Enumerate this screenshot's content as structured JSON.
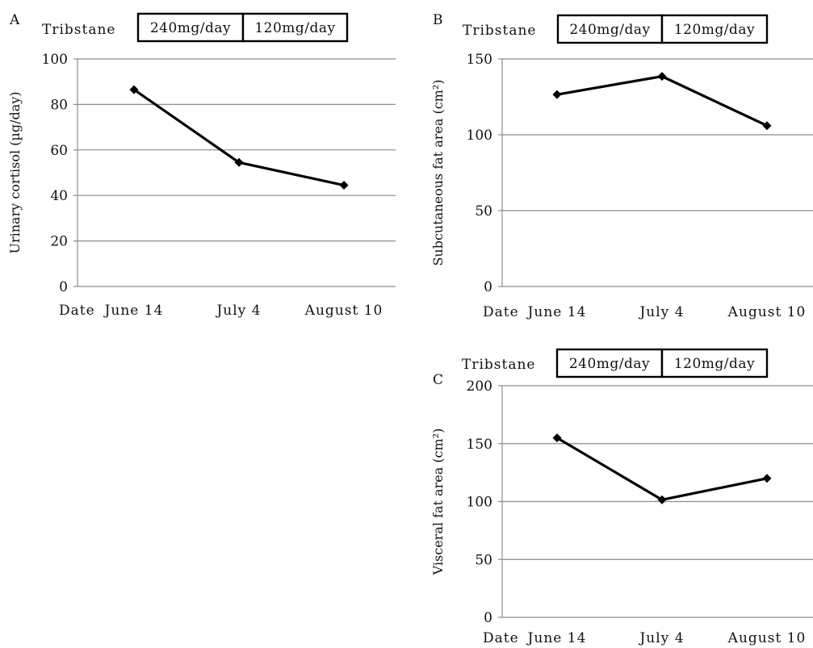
{
  "chart_data": [
    {
      "panel": "A",
      "type": "line",
      "treatment_label": "Tribstane",
      "doses": [
        "240mg/day",
        "120mg/day"
      ],
      "ylabel": "Urinary cortisol (µg/day)",
      "x_axis_prefix": "Date",
      "categories": [
        "June 14",
        "July 4",
        "August 10"
      ],
      "values": [
        86.5,
        54.5,
        44.5
      ],
      "ylim": [
        0,
        100
      ],
      "yticks": [
        "0",
        "20",
        "40",
        "60",
        "80",
        "100"
      ],
      "grid": true,
      "line_color": "#000000"
    },
    {
      "panel": "B",
      "type": "line",
      "treatment_label": "Tribstane",
      "doses": [
        "240mg/day",
        "120mg/day"
      ],
      "ylabel": "Subcutaneous fat area (cm²)",
      "x_axis_prefix": "Date",
      "categories": [
        "June 14",
        "July 4",
        "August 10"
      ],
      "values": [
        126.5,
        138.5,
        106
      ],
      "ylim": [
        0,
        150
      ],
      "yticks": [
        "0",
        "50",
        "100",
        "150"
      ],
      "grid": true,
      "line_color": "#000000"
    },
    {
      "panel": "C",
      "type": "line",
      "treatment_label": "Tribstane",
      "doses": [
        "240mg/day",
        "120mg/day"
      ],
      "ylabel": "Visceral fat area (cm²)",
      "x_axis_prefix": "Date",
      "categories": [
        "June 14",
        "July 4",
        "August 10"
      ],
      "values": [
        155,
        101.5,
        120
      ],
      "ylim": [
        0,
        200
      ],
      "yticks": [
        "0",
        "50",
        "100",
        "150",
        "200"
      ],
      "grid": true,
      "line_color": "#000000"
    }
  ]
}
